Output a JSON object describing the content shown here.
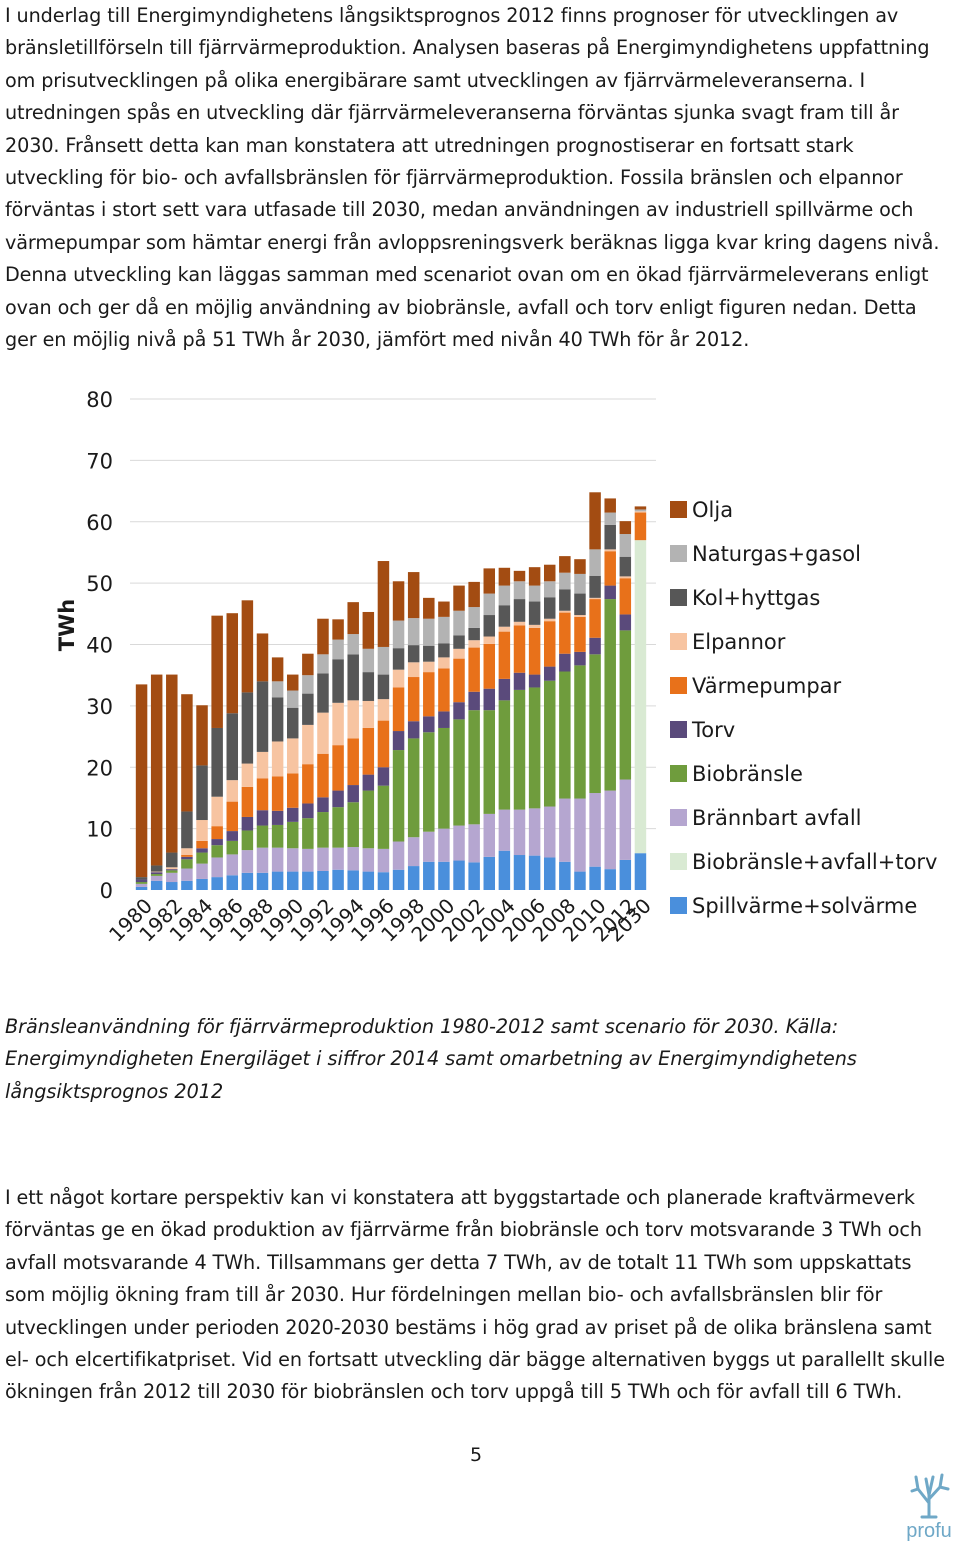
{
  "document": {
    "paragraph_1": "I underlag till Energimyndighetens långsiktsprognos 2012 finns prognoser för utvecklingen av bränsletillförseln till fjärrvärmeproduktion. Analysen baseras på Energimyndighetens uppfattning om prisutvecklingen på olika energibärare samt utvecklingen av fjärrvärmeleveranserna. I utredningen spås en utveckling där fjärrvärmeleveranserna förväntas sjunka svagt fram till år 2030. Frånsett detta kan man konstatera att utredningen prognostiserar en fortsatt stark utveckling för bio- och avfallsbränslen för fjärrvärmeproduktion. Fossila bränslen och elpannor förväntas i stort sett vara utfasade till 2030, medan användningen av industriell spillvärme och värmepumpar som hämtar energi från avloppsreningsverk beräknas ligga kvar kring dagens nivå. Denna utveckling kan läggas samman med scenariot ovan om en ökad fjärrvärmeleverans enligt ovan och ger då en möjlig användning av biobränsle, avfall och torv enligt figuren nedan. Detta ger en möjlig nivå på 51 TWh år 2030, jämfört med nivån 40 TWh för år 2012.",
    "caption": "Bränsleanvändning för fjärrvärmeproduktion 1980-2012 samt scenario för 2030. Källa: Energimyndigheten Energiläget i siffror 2014 samt omarbetning av Energimyndighetens långsiktsprognos 2012",
    "paragraph_2": "I ett något kortare perspektiv kan vi konstatera att byggstartade och planerade kraftvärmeverk förväntas ge en ökad produktion av fjärrvärme från biobränsle och torv motsvarande 3 TWh och avfall motsvarande 4 TWh. Tillsammans ger detta 7 TWh, av de totalt 11 TWh som uppskattats som möjlig ökning fram till år 2030. Hur fördelningen mellan bio- och avfallsbränslen blir för utvecklingen under perioden 2020-2030 bestäms i hög grad av priset på de olika bränslena samt el- och elcertifikatpriset. Vid en fortsatt utveckling där bägge alternativen byggs ut parallellt skulle ökningen från 2012 till 2030 för biobränslen och torv uppgå till 5 TWh och för avfall till 6 TWh.",
    "page_number": "5",
    "logo_text": "profu"
  },
  "chart_data": {
    "type": "bar",
    "stacked": true,
    "ylabel": "TWh",
    "xlabel": "",
    "title": "",
    "ylim": [
      0,
      80
    ],
    "yticks": [
      0,
      10,
      20,
      30,
      40,
      50,
      60,
      70,
      80
    ],
    "grid": true,
    "legend_position": "right",
    "categories": [
      "1980",
      "1981",
      "1982",
      "1983",
      "1984",
      "1985",
      "1986",
      "1987",
      "1988",
      "1989",
      "1990",
      "1991",
      "1992",
      "1993",
      "1994",
      "1995",
      "1996",
      "1997",
      "1998",
      "1999",
      "2000",
      "2001",
      "2002",
      "2003",
      "2004",
      "2005",
      "2006",
      "2007",
      "2008",
      "2009",
      "2010",
      "2011",
      "2012",
      "2030"
    ],
    "xtick_labels": [
      "1980",
      "1982",
      "1984",
      "1986",
      "1988",
      "1990",
      "1992",
      "1994",
      "1996",
      "1998",
      "2000",
      "2002",
      "2004",
      "2006",
      "2008",
      "2010",
      "2012",
      "2030"
    ],
    "series": [
      {
        "name": "Spillvärme+solvärme",
        "color": "#4a8fdc",
        "values": [
          0.5,
          1.5,
          1.3,
          1.5,
          1.8,
          2.1,
          2.4,
          2.8,
          2.8,
          3.0,
          3.0,
          3.0,
          3.1,
          3.3,
          3.2,
          3.0,
          2.9,
          3.3,
          3.9,
          4.6,
          4.6,
          4.8,
          4.5,
          5.4,
          6.4,
          5.7,
          5.6,
          5.3,
          4.6,
          3.0,
          3.8,
          3.4,
          4.9,
          6.0
        ]
      },
      {
        "name": "Brännbart avfall",
        "color": "#b5a6d0",
        "values": [
          0.5,
          0.8,
          1.5,
          2.0,
          2.5,
          3.2,
          3.4,
          3.7,
          4.1,
          3.9,
          3.8,
          3.7,
          3.8,
          3.6,
          3.8,
          3.8,
          3.8,
          4.6,
          4.7,
          4.9,
          5.4,
          5.7,
          6.2,
          7.0,
          6.7,
          7.4,
          7.7,
          8.3,
          10.3,
          11.9,
          12.0,
          12.8,
          13.1,
          0
        ]
      },
      {
        "name": "Biobränsle+avfall+torv",
        "color": "#d9ead3",
        "values": [
          0,
          0,
          0,
          0,
          0,
          0,
          0,
          0,
          0,
          0,
          0,
          0,
          0,
          0,
          0,
          0,
          0,
          0,
          0,
          0,
          0,
          0,
          0,
          0,
          0,
          0,
          0,
          0,
          0,
          0,
          0,
          0,
          0,
          51
        ]
      },
      {
        "name": "Biobränsle",
        "color": "#6f9c3d",
        "values": [
          0.3,
          0.3,
          0.4,
          1.5,
          1.8,
          2.0,
          2.2,
          3.2,
          3.6,
          3.7,
          4.3,
          5.0,
          5.8,
          6.6,
          7.3,
          9.4,
          10.3,
          14.9,
          16.1,
          16.2,
          16.4,
          17.3,
          18.6,
          16.9,
          17.8,
          19.5,
          19.7,
          20.5,
          20.7,
          21.7,
          22.6,
          31.2,
          24.3,
          0
        ]
      },
      {
        "name": "Torv",
        "color": "#5a4a7b",
        "values": [
          0.4,
          0.3,
          0.2,
          0.4,
          0.7,
          1.0,
          1.6,
          2.2,
          2.5,
          2.3,
          2.3,
          2.4,
          2.4,
          2.7,
          2.8,
          2.6,
          3.0,
          3.1,
          2.8,
          2.6,
          2.7,
          2.8,
          3.0,
          3.5,
          3.5,
          2.8,
          2.1,
          2.3,
          2.9,
          2.2,
          2.7,
          2.2,
          2.6,
          0
        ]
      },
      {
        "name": "Värmepumpar",
        "color": "#e8711a",
        "values": [
          0,
          0,
          0,
          0.3,
          1.2,
          2.1,
          4.8,
          4.9,
          5.2,
          5.6,
          5.6,
          6.4,
          7.1,
          7.4,
          7.6,
          7.6,
          7.6,
          7.1,
          7.2,
          7.2,
          7.0,
          7.1,
          7.2,
          7.3,
          7.7,
          7.7,
          7.6,
          7.4,
          6.7,
          5.7,
          6.3,
          5.6,
          5.9,
          4.5
        ]
      },
      {
        "name": "Elpannor",
        "color": "#f7c4a1",
        "values": [
          0,
          0.1,
          0.3,
          1.1,
          3.4,
          4.8,
          3.5,
          3.8,
          4.3,
          5.7,
          5.7,
          6.4,
          6.7,
          6.9,
          6.2,
          4.4,
          3.5,
          2.9,
          2.4,
          1.7,
          1.8,
          1.6,
          1.2,
          1.2,
          0.8,
          0.6,
          0.5,
          0.4,
          0.3,
          0.3,
          0.2,
          0.3,
          0.3,
          0.2
        ]
      },
      {
        "name": "Kol+hyttgas",
        "color": "#575757",
        "values": [
          0.4,
          1.0,
          2.4,
          6.0,
          8.9,
          11.2,
          10.9,
          11.6,
          11.5,
          7.2,
          5.0,
          5.1,
          6.4,
          7.1,
          7.5,
          4.7,
          4.0,
          3.5,
          2.8,
          2.6,
          2.3,
          2.2,
          2.0,
          3.5,
          3.5,
          3.7,
          3.8,
          3.5,
          3.5,
          3.5,
          3.6,
          4.0,
          3.2,
          0
        ]
      },
      {
        "name": "Naturgas+gasol",
        "color": "#b3b3b3",
        "values": [
          0,
          0,
          0,
          0,
          0,
          0,
          0,
          0,
          0,
          2.6,
          2.8,
          3.0,
          3.1,
          3.2,
          3.3,
          3.8,
          4.5,
          4.5,
          4.4,
          4.4,
          4.3,
          4.0,
          3.4,
          3.5,
          3.2,
          2.9,
          2.6,
          2.6,
          2.7,
          3.2,
          4.3,
          2.0,
          3.7,
          0.3
        ]
      },
      {
        "name": "Olja",
        "color": "#a34c12",
        "values": [
          31.4,
          31.1,
          29.0,
          19.1,
          9.8,
          18.3,
          16.3,
          15.0,
          7.8,
          3.9,
          2.6,
          3.5,
          5.8,
          3.3,
          5.2,
          6.0,
          14.0,
          6.4,
          7.5,
          3.4,
          2.5,
          4.1,
          4.1,
          4.1,
          2.9,
          1.7,
          3.0,
          2.7,
          2.7,
          2.4,
          9.3,
          2.3,
          2.1,
          0.5
        ]
      }
    ]
  }
}
